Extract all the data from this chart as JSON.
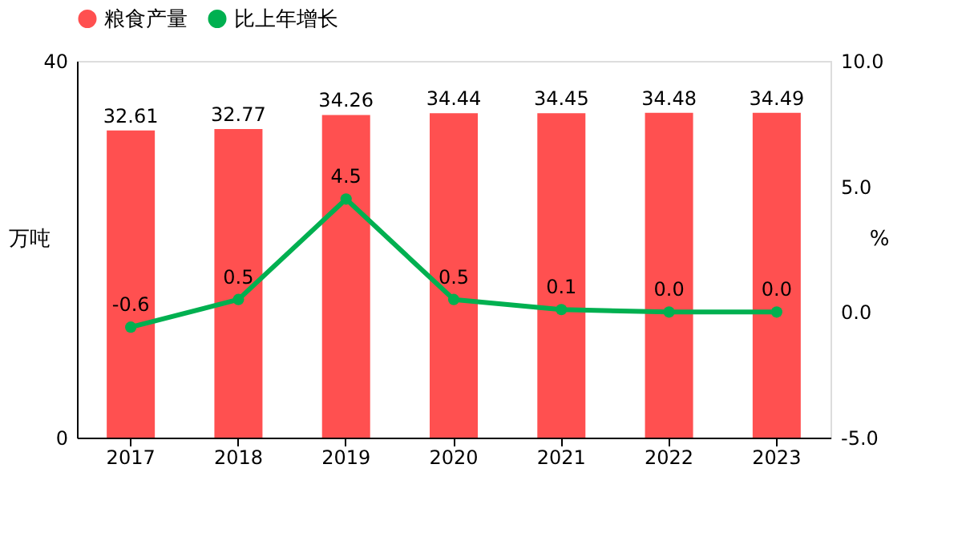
{
  "chart_data": {
    "type": "bar",
    "categories": [
      "2017",
      "2018",
      "2019",
      "2020",
      "2021",
      "2022",
      "2023"
    ],
    "series": [
      {
        "name": "粮食产量",
        "color": "#ff5050",
        "values": [
          32.61,
          32.77,
          34.26,
          34.44,
          34.45,
          34.48,
          34.49
        ],
        "value_labels": [
          "32.61",
          "32.77",
          "34.26",
          "34.44",
          "34.45",
          "34.48",
          "34.49"
        ]
      },
      {
        "name": "比上年增长",
        "type": "line",
        "axis": "y2",
        "color": "#00b050",
        "values": [
          -0.6,
          0.5,
          4.5,
          0.5,
          0.1,
          0.0,
          0.0
        ],
        "value_labels": [
          "-0.6",
          "0.5",
          "4.5",
          "0.5",
          "0.1",
          "0.0",
          "0.0"
        ]
      }
    ],
    "ylabel": "万吨",
    "y2label": "%",
    "ylim": [
      0,
      40
    ],
    "yticks": [
      0,
      40
    ],
    "y2lim": [
      -5,
      10
    ],
    "y2ticks": [
      {
        "value": -5,
        "label": "-5.0"
      },
      {
        "value": 0,
        "label": "0.0"
      },
      {
        "value": 5,
        "label": "5.0"
      },
      {
        "value": 10,
        "label": "10.0"
      }
    ],
    "legend": "top",
    "marker": "circle",
    "grid": false
  }
}
